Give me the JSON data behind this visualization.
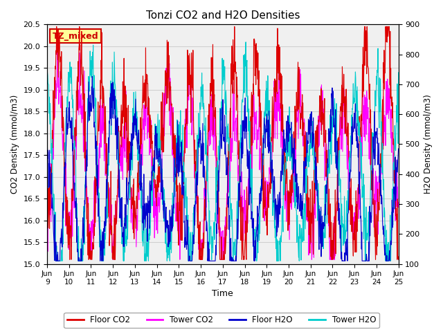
{
  "title": "Tonzi CO2 and H2O Densities",
  "xlabel": "Time",
  "ylabel_left": "CO2 Density (mmol/m3)",
  "ylabel_right": "H2O Density (mmol/m3)",
  "ylim_left": [
    15.0,
    20.5
  ],
  "ylim_right": [
    100,
    900
  ],
  "yticks_left": [
    15.0,
    15.5,
    16.0,
    16.5,
    17.0,
    17.5,
    18.0,
    18.5,
    19.0,
    19.5,
    20.0,
    20.5
  ],
  "yticks_right": [
    100,
    200,
    300,
    400,
    500,
    600,
    700,
    800,
    900
  ],
  "annotation_text": "TZ_mixed",
  "annotation_color": "#cc0000",
  "annotation_bg": "#ffff99",
  "annotation_border": "#cc0000",
  "floor_co2_color": "#dd0000",
  "tower_co2_color": "#ff00ff",
  "floor_h2o_color": "#0000cc",
  "tower_h2o_color": "#00cccc",
  "legend_labels": [
    "Floor CO2",
    "Tower CO2",
    "Floor H2O",
    "Tower H2O"
  ],
  "grid_color": "#d0d0d0",
  "bg_color": "#f0f0f0",
  "n_points": 1152
}
